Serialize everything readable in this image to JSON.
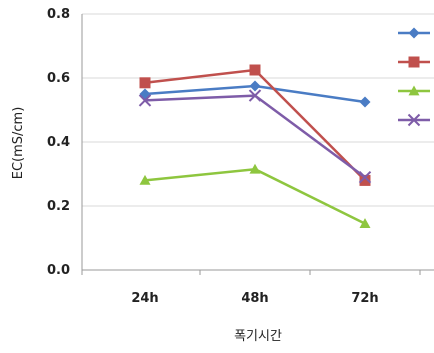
{
  "chart_data": {
    "type": "line",
    "title": "",
    "xlabel": "폭기시간",
    "ylabel": "EC(mS/cm)",
    "categories": [
      "24h",
      "48h",
      "72h"
    ],
    "ylim": [
      0,
      0.8
    ],
    "yticks": [
      "0.0",
      "0.2",
      "0.4",
      "0.6",
      "0.8"
    ],
    "grid": "horizontal",
    "legend": "right",
    "series": [
      {
        "values": [
          0.55,
          0.575,
          0.525
        ],
        "color": "#4a7cc4",
        "marker": "diamond"
      },
      {
        "values": [
          0.585,
          0.625,
          0.28
        ],
        "color": "#c0504d",
        "marker": "square"
      },
      {
        "values": [
          0.28,
          0.315,
          0.145
        ],
        "color": "#8ec63f",
        "marker": "triangle"
      },
      {
        "values": [
          0.53,
          0.545,
          0.29
        ],
        "color": "#7e5ca8",
        "marker": "x"
      }
    ]
  }
}
